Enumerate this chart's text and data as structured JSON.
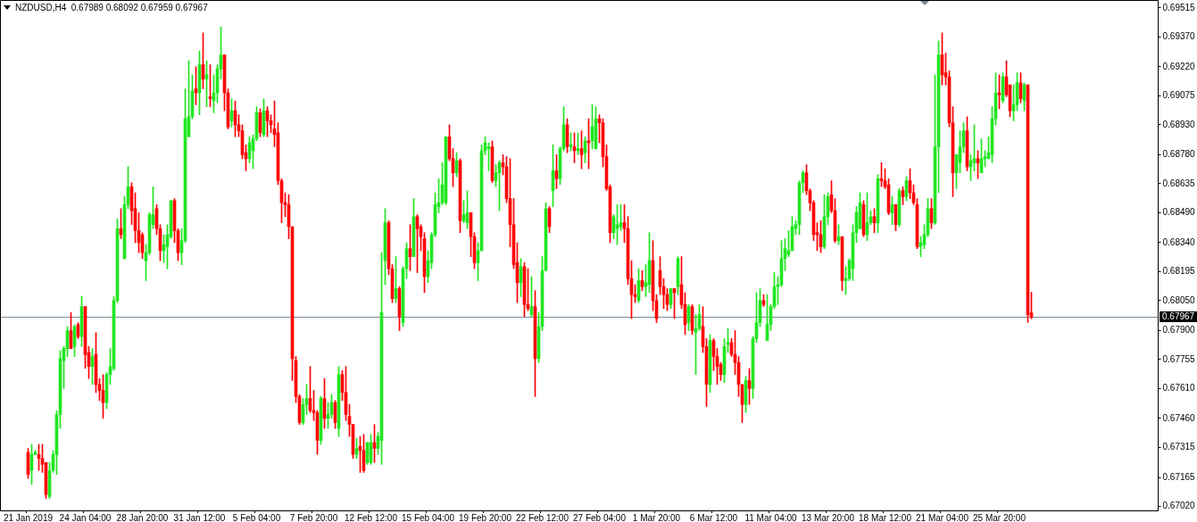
{
  "chart_data": {
    "type": "candlestick",
    "title": "NZDUSD,H4  0.67989 0.68092 0.67959 0.67967",
    "categories": [
      "21 Jan 2019",
      null,
      null,
      null,
      null,
      null,
      null,
      null,
      null,
      null,
      null,
      null,
      null,
      null,
      null,
      null,
      "24 Jan 04:00",
      null,
      null,
      null,
      null,
      null,
      null,
      null,
      null,
      null,
      null,
      null,
      null,
      null,
      null,
      null,
      "28 Jan 20:00",
      null,
      null,
      null,
      null,
      null,
      null,
      null,
      null,
      null,
      null,
      null,
      null,
      null,
      null,
      null,
      "31 Jan 12:00",
      null,
      null,
      null,
      null,
      null,
      null,
      null,
      null,
      null,
      null,
      null,
      null,
      null,
      null,
      null,
      "5 Feb 04:00",
      null,
      null,
      null,
      null,
      null,
      null,
      null,
      null,
      null,
      null,
      null,
      null,
      null,
      null,
      null,
      "7 Feb 20:00",
      null,
      null,
      null,
      null,
      null,
      null,
      null,
      null,
      null,
      null,
      null,
      null,
      null,
      null,
      null,
      "12 Feb 12:00",
      null,
      null,
      null,
      null,
      null,
      null,
      null,
      null,
      null,
      null,
      null,
      null,
      null,
      null,
      null,
      "15 Feb 04:00",
      null,
      null,
      null,
      null,
      null,
      null,
      null,
      null,
      null,
      null,
      null,
      null,
      null,
      null,
      null,
      "19 Feb 20:00",
      null,
      null,
      null,
      null,
      null,
      null,
      null,
      null,
      null,
      null,
      null,
      null,
      null,
      null,
      null,
      "22 Feb 12:00",
      null,
      null,
      null,
      null,
      null,
      null,
      null,
      null,
      null,
      null,
      null,
      null,
      null,
      null,
      null,
      "27 Feb 04:00",
      null,
      null,
      null,
      null,
      null,
      null,
      null,
      null,
      null,
      null,
      null,
      null,
      null,
      null,
      null,
      "1 Mar 20:00",
      null,
      null,
      null,
      null,
      null,
      null,
      null,
      null,
      null,
      null,
      null,
      null,
      null,
      null,
      null,
      "6 Mar 12:00",
      null,
      null,
      null,
      null,
      null,
      null,
      null,
      null,
      null,
      null,
      null,
      null,
      null,
      null,
      null,
      "11 Mar 04:00",
      null,
      null,
      null,
      null,
      null,
      null,
      null,
      null,
      null,
      null,
      null,
      null,
      null,
      null,
      null,
      "13 Mar 20:00",
      null,
      null,
      null,
      null,
      null,
      null,
      null,
      null,
      null,
      null,
      null,
      null,
      null,
      null,
      null,
      "18 Mar 12:00",
      null,
      null,
      null,
      null,
      null,
      null,
      null,
      null,
      null,
      null,
      null,
      null,
      null,
      null,
      null,
      "21 Mar 04:00",
      null,
      null,
      null,
      null,
      null,
      null,
      null,
      null,
      null,
      null,
      null,
      null,
      null,
      null,
      null,
      "25 Mar 20:00",
      null,
      null,
      null,
      null,
      null,
      null,
      null,
      null,
      null,
      null,
      null,
      null,
      null,
      null,
      null,
      null,
      null,
      null,
      null,
      null,
      null,
      null,
      null,
      null,
      null,
      null,
      null,
      null,
      null,
      null,
      null,
      null,
      null,
      null,
      null,
      null,
      null,
      null,
      null,
      null,
      null,
      null,
      null,
      null
    ],
    "ohlc": [
      [
        0.6729,
        0.6731,
        0.6716,
        0.6718
      ],
      [
        0.672,
        0.6733,
        0.6713,
        0.6728
      ],
      [
        0.6728,
        0.673,
        0.6728,
        0.6729
      ],
      [
        0.6728,
        0.6733,
        0.672,
        0.6726
      ],
      [
        0.6726,
        0.6733,
        0.6719,
        0.6723
      ],
      [
        0.6724,
        0.6724,
        0.6706,
        0.6708
      ],
      [
        0.6707,
        0.6724,
        0.6706,
        0.672
      ],
      [
        0.672,
        0.673,
        0.6719,
        0.6728
      ],
      [
        0.6728,
        0.675,
        0.6718,
        0.6748
      ],
      [
        0.6748,
        0.678,
        0.6741,
        0.6776
      ],
      [
        0.6775,
        0.6782,
        0.6761,
        0.6781
      ],
      [
        0.6781,
        0.6792,
        0.6777,
        0.679
      ],
      [
        0.679,
        0.6799,
        0.6781,
        0.6781
      ],
      [
        0.6782,
        0.6793,
        0.6777,
        0.6792
      ],
      [
        0.6793,
        0.6794,
        0.6786,
        0.6787
      ],
      [
        0.6787,
        0.6807,
        0.6782,
        0.6802
      ],
      [
        0.6802,
        0.6802,
        0.6771,
        0.6778
      ],
      [
        0.6779,
        0.6782,
        0.6766,
        0.6772
      ],
      [
        0.6772,
        0.6781,
        0.6763,
        0.6777
      ],
      [
        0.6778,
        0.6789,
        0.6759,
        0.6763
      ],
      [
        0.6763,
        0.6766,
        0.6755,
        0.676
      ],
      [
        0.676,
        0.6768,
        0.6746,
        0.6754
      ],
      [
        0.6754,
        0.6769,
        0.6751,
        0.6768
      ],
      [
        0.6768,
        0.6781,
        0.6763,
        0.6772
      ],
      [
        0.6771,
        0.6807,
        0.677,
        0.6805
      ],
      [
        0.6805,
        0.6846,
        0.6804,
        0.6841
      ],
      [
        0.6841,
        0.6851,
        0.6836,
        0.6838
      ],
      [
        0.6826,
        0.6857,
        0.6826,
        0.6853
      ],
      [
        0.6853,
        0.6872,
        0.6851,
        0.6862
      ],
      [
        0.6862,
        0.6864,
        0.6843,
        0.685
      ],
      [
        0.6851,
        0.6859,
        0.6834,
        0.684
      ],
      [
        0.684,
        0.6849,
        0.6829,
        0.6834
      ],
      [
        0.6838,
        0.6839,
        0.6826,
        0.6829
      ],
      [
        0.6825,
        0.6833,
        0.6815,
        0.6829
      ],
      [
        0.6829,
        0.6849,
        0.6828,
        0.6848
      ],
      [
        0.6843,
        0.6862,
        0.6841,
        0.6848
      ],
      [
        0.6851,
        0.6853,
        0.6838,
        0.6841
      ],
      [
        0.6841,
        0.6843,
        0.6825,
        0.683
      ],
      [
        0.683,
        0.6838,
        0.6824,
        0.6833
      ],
      [
        0.6832,
        0.6843,
        0.6821,
        0.6838
      ],
      [
        0.6837,
        0.6855,
        0.6836,
        0.6855
      ],
      [
        0.6855,
        0.6856,
        0.6834,
        0.684
      ],
      [
        0.684,
        0.6841,
        0.6825,
        0.6829
      ],
      [
        0.6829,
        0.6841,
        0.6823,
        0.6835
      ],
      [
        0.6835,
        0.6911,
        0.6834,
        0.6896
      ],
      [
        0.6887,
        0.6925,
        0.6887,
        0.6897
      ],
      [
        0.6897,
        0.6918,
        0.6896,
        0.691
      ],
      [
        0.6911,
        0.6922,
        0.6903,
        0.6909
      ],
      [
        0.6909,
        0.693,
        0.6898,
        0.6923
      ],
      [
        0.6923,
        0.6939,
        0.6911,
        0.6916
      ],
      [
        0.6916,
        0.6925,
        0.6902,
        0.6918
      ],
      [
        0.6907,
        0.6923,
        0.6902,
        0.6906
      ],
      [
        0.6905,
        0.6918,
        0.6899,
        0.6909
      ],
      [
        0.6909,
        0.6923,
        0.6904,
        0.6921
      ],
      [
        0.6921,
        0.6942,
        0.6916,
        0.6928
      ],
      [
        0.6928,
        0.6928,
        0.69,
        0.6909
      ],
      [
        0.6909,
        0.6911,
        0.6891,
        0.6892
      ],
      [
        0.6895,
        0.6906,
        0.6892,
        0.69
      ],
      [
        0.69,
        0.6905,
        0.6887,
        0.6893
      ],
      [
        0.6893,
        0.6898,
        0.6887,
        0.689
      ],
      [
        0.689,
        0.6893,
        0.6876,
        0.6878
      ],
      [
        0.6879,
        0.6883,
        0.687,
        0.6876
      ],
      [
        0.6876,
        0.6887,
        0.6874,
        0.6884
      ],
      [
        0.688,
        0.6888,
        0.6871,
        0.6886
      ],
      [
        0.6886,
        0.6902,
        0.6885,
        0.6899
      ],
      [
        0.6899,
        0.6901,
        0.6887,
        0.6889
      ],
      [
        0.6888,
        0.6906,
        0.6887,
        0.69
      ],
      [
        0.69,
        0.6902,
        0.6887,
        0.6895
      ],
      [
        0.6895,
        0.6898,
        0.6889,
        0.6893
      ],
      [
        0.6891,
        0.6905,
        0.6882,
        0.6888
      ],
      [
        0.6889,
        0.6894,
        0.6863,
        0.6865
      ],
      [
        0.6865,
        0.6866,
        0.6844,
        0.6854
      ],
      [
        0.6854,
        0.6859,
        0.6847,
        0.6853
      ],
      [
        0.6853,
        0.6858,
        0.6836,
        0.6842
      ],
      [
        0.6842,
        0.6842,
        0.6765,
        0.6776
      ],
      [
        0.6775,
        0.6777,
        0.6754,
        0.6757
      ],
      [
        0.6757,
        0.6758,
        0.6743,
        0.6744
      ],
      [
        0.6744,
        0.6756,
        0.6743,
        0.6753
      ],
      [
        0.6753,
        0.6763,
        0.6748,
        0.6756
      ],
      [
        0.6756,
        0.6772,
        0.6749,
        0.675
      ],
      [
        0.675,
        0.676,
        0.6745,
        0.6749
      ],
      [
        0.6749,
        0.675,
        0.6728,
        0.6735
      ],
      [
        0.6735,
        0.6757,
        0.6733,
        0.6756
      ],
      [
        0.6756,
        0.6766,
        0.6741,
        0.6746
      ],
      [
        0.6746,
        0.6754,
        0.6741,
        0.6748
      ],
      [
        0.6748,
        0.6758,
        0.6746,
        0.6754
      ],
      [
        0.6754,
        0.6755,
        0.6741,
        0.6744
      ],
      [
        0.6741,
        0.6772,
        0.6737,
        0.6768
      ],
      [
        0.6768,
        0.677,
        0.6755,
        0.6759
      ],
      [
        0.6759,
        0.6772,
        0.6745,
        0.6748
      ],
      [
        0.6747,
        0.6753,
        0.6737,
        0.6743
      ],
      [
        0.6743,
        0.6743,
        0.6726,
        0.6728
      ],
      [
        0.6728,
        0.6736,
        0.6726,
        0.6731
      ],
      [
        0.6732,
        0.6737,
        0.6719,
        0.673
      ],
      [
        0.673,
        0.6738,
        0.6719,
        0.672
      ],
      [
        0.6724,
        0.6734,
        0.6723,
        0.6734
      ],
      [
        0.6724,
        0.6738,
        0.6723,
        0.6734
      ],
      [
        0.6734,
        0.6743,
        0.6724,
        0.6731
      ],
      [
        0.6731,
        0.6739,
        0.6728,
        0.6737
      ],
      [
        0.6735,
        0.6829,
        0.6723,
        0.6799
      ],
      [
        0.6825,
        0.6851,
        0.6813,
        0.6844
      ],
      [
        0.6844,
        0.6845,
        0.6818,
        0.6821
      ],
      [
        0.6821,
        0.6823,
        0.6804,
        0.6806
      ],
      [
        0.6806,
        0.6827,
        0.6804,
        0.6811
      ],
      [
        0.6811,
        0.6812,
        0.679,
        0.6797
      ],
      [
        0.6794,
        0.6822,
        0.6792,
        0.6821
      ],
      [
        0.6821,
        0.6834,
        0.6816,
        0.6831
      ],
      [
        0.6831,
        0.6843,
        0.682,
        0.6827
      ],
      [
        0.6827,
        0.6856,
        0.6827,
        0.6847
      ],
      [
        0.6847,
        0.6848,
        0.6819,
        0.6841
      ],
      [
        0.6842,
        0.6843,
        0.683,
        0.6837
      ],
      [
        0.6836,
        0.6839,
        0.6809,
        0.6817
      ],
      [
        0.6817,
        0.683,
        0.6814,
        0.6825
      ],
      [
        0.6824,
        0.6839,
        0.6821,
        0.6838
      ],
      [
        0.6838,
        0.6859,
        0.6837,
        0.6853
      ],
      [
        0.6852,
        0.6866,
        0.6849,
        0.6854
      ],
      [
        0.6854,
        0.6874,
        0.6853,
        0.6863
      ],
      [
        0.6854,
        0.6887,
        0.6853,
        0.6887
      ],
      [
        0.6887,
        0.6893,
        0.6875,
        0.6876
      ],
      [
        0.6876,
        0.6881,
        0.6862,
        0.6869
      ],
      [
        0.6869,
        0.6879,
        0.6867,
        0.6875
      ],
      [
        0.6875,
        0.6876,
        0.6839,
        0.6845
      ],
      [
        0.6845,
        0.6855,
        0.6844,
        0.6848
      ],
      [
        0.6844,
        0.686,
        0.6841,
        0.6849
      ],
      [
        0.6849,
        0.6849,
        0.6827,
        0.6837
      ],
      [
        0.6837,
        0.6839,
        0.6821,
        0.6824
      ],
      [
        0.6824,
        0.6834,
        0.6815,
        0.683
      ],
      [
        0.683,
        0.6883,
        0.683,
        0.688
      ],
      [
        0.688,
        0.6887,
        0.6878,
        0.6884
      ],
      [
        0.6881,
        0.6884,
        0.687,
        0.6882
      ],
      [
        0.6882,
        0.6885,
        0.6864,
        0.6865
      ],
      [
        0.6865,
        0.6873,
        0.6862,
        0.6869
      ],
      [
        0.6869,
        0.6875,
        0.685,
        0.6874
      ],
      [
        0.6874,
        0.6878,
        0.6868,
        0.6872
      ],
      [
        0.6872,
        0.6877,
        0.6854,
        0.6856
      ],
      [
        0.6856,
        0.6876,
        0.6832,
        0.6843
      ],
      [
        0.6843,
        0.6856,
        0.6821,
        0.6823
      ],
      [
        0.6824,
        0.6834,
        0.6804,
        0.6814
      ],
      [
        0.6814,
        0.6826,
        0.6807,
        0.6822
      ],
      [
        0.6822,
        0.6824,
        0.6797,
        0.6803
      ],
      [
        0.6803,
        0.6821,
        0.68,
        0.6801
      ],
      [
        0.6798,
        0.6817,
        0.6797,
        0.6802
      ],
      [
        0.6802,
        0.681,
        0.6757,
        0.6776
      ],
      [
        0.6776,
        0.6799,
        0.6774,
        0.6792
      ],
      [
        0.6792,
        0.6827,
        0.679,
        0.682
      ],
      [
        0.682,
        0.6854,
        0.682,
        0.6851
      ],
      [
        0.6851,
        0.6852,
        0.6839,
        0.6842
      ],
      [
        0.686,
        0.6883,
        0.6852,
        0.687
      ],
      [
        0.687,
        0.6878,
        0.6861,
        0.6866
      ],
      [
        0.6866,
        0.6882,
        0.6863,
        0.6881
      ],
      [
        0.6881,
        0.6902,
        0.688,
        0.6893
      ],
      [
        0.6893,
        0.6896,
        0.6879,
        0.6882
      ],
      [
        0.6882,
        0.6889,
        0.688,
        0.6883
      ],
      [
        0.6882,
        0.6889,
        0.6874,
        0.688
      ],
      [
        0.688,
        0.6889,
        0.6878,
        0.6881
      ],
      [
        0.6881,
        0.689,
        0.6871,
        0.6878
      ],
      [
        0.6879,
        0.6887,
        0.6874,
        0.6885
      ],
      [
        0.6885,
        0.6896,
        0.6871,
        0.6884
      ],
      [
        0.6885,
        0.6903,
        0.6881,
        0.6892
      ],
      [
        0.6881,
        0.6902,
        0.6881,
        0.6896
      ],
      [
        0.6896,
        0.6898,
        0.6884,
        0.6894
      ],
      [
        0.6894,
        0.6896,
        0.6872,
        0.6877
      ],
      [
        0.6877,
        0.6883,
        0.686,
        0.6861
      ],
      [
        0.6862,
        0.6863,
        0.6834,
        0.6839
      ],
      [
        0.6839,
        0.6848,
        0.6836,
        0.6847
      ],
      [
        0.6841,
        0.6853,
        0.6833,
        0.6843
      ],
      [
        0.6842,
        0.6853,
        0.684,
        0.6844
      ],
      [
        0.6844,
        0.6853,
        0.6834,
        0.6841
      ],
      [
        0.6841,
        0.6847,
        0.6813,
        0.6816
      ],
      [
        0.6816,
        0.6825,
        0.6796,
        0.6808
      ],
      [
        0.6808,
        0.6813,
        0.6804,
        0.6807
      ],
      [
        0.6805,
        0.6821,
        0.6804,
        0.6815
      ],
      [
        0.6815,
        0.682,
        0.681,
        0.6812
      ],
      [
        0.6812,
        0.6823,
        0.6807,
        0.6814
      ],
      [
        0.6813,
        0.6839,
        0.6809,
        0.6825
      ],
      [
        0.6825,
        0.6835,
        0.68,
        0.6805
      ],
      [
        0.6805,
        0.6808,
        0.6794,
        0.6796
      ],
      [
        0.682,
        0.6827,
        0.6808,
        0.6812
      ],
      [
        0.6812,
        0.6816,
        0.6801,
        0.6808
      ],
      [
        0.6808,
        0.6811,
        0.68,
        0.6803
      ],
      [
        0.6803,
        0.6811,
        0.6801,
        0.6811
      ],
      [
        0.6811,
        0.6811,
        0.6796,
        0.6809
      ],
      [
        0.6812,
        0.6827,
        0.6808,
        0.6826
      ],
      [
        0.6813,
        0.6827,
        0.6801,
        0.6803
      ],
      [
        0.6803,
        0.6809,
        0.6788,
        0.6793
      ],
      [
        0.6794,
        0.6803,
        0.679,
        0.6802
      ],
      [
        0.6802,
        0.6803,
        0.6788,
        0.679
      ],
      [
        0.6789,
        0.6798,
        0.6768,
        0.6791
      ],
      [
        0.6791,
        0.6803,
        0.679,
        0.6798
      ],
      [
        0.6792,
        0.6802,
        0.6779,
        0.6782
      ],
      [
        0.6782,
        0.6786,
        0.6752,
        0.6763
      ],
      [
        0.6763,
        0.6788,
        0.6759,
        0.6785
      ],
      [
        0.6785,
        0.6786,
        0.677,
        0.6777
      ],
      [
        0.6777,
        0.6781,
        0.6763,
        0.6772
      ],
      [
        0.6773,
        0.6774,
        0.6765,
        0.6768
      ],
      [
        0.6768,
        0.6786,
        0.6764,
        0.6782
      ],
      [
        0.6783,
        0.6791,
        0.6779,
        0.6784
      ],
      [
        0.6784,
        0.6786,
        0.6777,
        0.6778
      ],
      [
        0.6778,
        0.679,
        0.6768,
        0.6774
      ],
      [
        0.6774,
        0.6777,
        0.6757,
        0.6763
      ],
      [
        0.6763,
        0.6763,
        0.6744,
        0.6753
      ],
      [
        0.6753,
        0.6767,
        0.6749,
        0.6765
      ],
      [
        0.6765,
        0.6771,
        0.6753,
        0.6761
      ],
      [
        0.6761,
        0.6787,
        0.6756,
        0.6786
      ],
      [
        0.6786,
        0.6809,
        0.6784,
        0.6794
      ],
      [
        0.6794,
        0.6811,
        0.6792,
        0.6805
      ],
      [
        0.6805,
        0.6808,
        0.6802,
        0.6803
      ],
      [
        0.6785,
        0.6808,
        0.6785,
        0.6793
      ],
      [
        0.6793,
        0.6803,
        0.679,
        0.6802
      ],
      [
        0.6802,
        0.6819,
        0.6801,
        0.6812
      ],
      [
        0.6812,
        0.6817,
        0.6803,
        0.6813
      ],
      [
        0.6813,
        0.6835,
        0.6812,
        0.6826
      ],
      [
        0.6826,
        0.6836,
        0.682,
        0.6831
      ],
      [
        0.6828,
        0.684,
        0.6827,
        0.683
      ],
      [
        0.683,
        0.6847,
        0.683,
        0.6842
      ],
      [
        0.6841,
        0.6845,
        0.6838,
        0.6843
      ],
      [
        0.6843,
        0.6865,
        0.6838,
        0.6864
      ],
      [
        0.6864,
        0.687,
        0.6859,
        0.6869
      ],
      [
        0.6869,
        0.6873,
        0.6858,
        0.686
      ],
      [
        0.686,
        0.6861,
        0.685,
        0.6854
      ],
      [
        0.6854,
        0.6855,
        0.6835,
        0.6838
      ],
      [
        0.6839,
        0.6844,
        0.683,
        0.6838
      ],
      [
        0.6838,
        0.6845,
        0.6829,
        0.6832
      ],
      [
        0.6832,
        0.6858,
        0.6831,
        0.6847
      ],
      [
        0.6847,
        0.6859,
        0.6843,
        0.6857
      ],
      [
        0.6858,
        0.6865,
        0.6849,
        0.685
      ],
      [
        0.685,
        0.6856,
        0.6834,
        0.6835
      ],
      [
        0.6835,
        0.6843,
        0.6833,
        0.6837
      ],
      [
        0.6837,
        0.6837,
        0.681,
        0.6815
      ],
      [
        0.6815,
        0.6822,
        0.6808,
        0.6816
      ],
      [
        0.6816,
        0.6826,
        0.6815,
        0.6825
      ],
      [
        0.6821,
        0.6843,
        0.6815,
        0.6839
      ],
      [
        0.6839,
        0.6852,
        0.6834,
        0.6849
      ],
      [
        0.6841,
        0.6859,
        0.6841,
        0.6854
      ],
      [
        0.6853,
        0.6855,
        0.6837,
        0.6838
      ],
      [
        0.6838,
        0.6859,
        0.6835,
        0.6844
      ],
      [
        0.6844,
        0.685,
        0.6843,
        0.6847
      ],
      [
        0.6847,
        0.6851,
        0.6839,
        0.6844
      ],
      [
        0.6844,
        0.6868,
        0.6839,
        0.6866
      ],
      [
        0.6866,
        0.6874,
        0.6862,
        0.6865
      ],
      [
        0.6865,
        0.6871,
        0.6861,
        0.6862
      ],
      [
        0.6863,
        0.6866,
        0.6848,
        0.6849
      ],
      [
        0.6849,
        0.6857,
        0.6843,
        0.6853
      ],
      [
        0.6853,
        0.6853,
        0.684,
        0.6843
      ],
      [
        0.6843,
        0.6861,
        0.6842,
        0.686
      ],
      [
        0.686,
        0.6862,
        0.6853,
        0.6857
      ],
      [
        0.6857,
        0.6867,
        0.6855,
        0.6865
      ],
      [
        0.6865,
        0.6871,
        0.6856,
        0.6859
      ],
      [
        0.6859,
        0.6863,
        0.6853,
        0.6854
      ],
      [
        0.6853,
        0.6856,
        0.6831,
        0.6832
      ],
      [
        0.6832,
        0.6837,
        0.6827,
        0.6834
      ],
      [
        0.6833,
        0.6843,
        0.6831,
        0.6838
      ],
      [
        0.6838,
        0.6856,
        0.6837,
        0.6851
      ],
      [
        0.6851,
        0.6856,
        0.6841,
        0.6844
      ],
      [
        0.6844,
        0.6918,
        0.6843,
        0.6882
      ],
      [
        0.6882,
        0.6935,
        0.6859,
        0.6928
      ],
      [
        0.6928,
        0.6939,
        0.6913,
        0.6918
      ],
      [
        0.6919,
        0.6929,
        0.6913,
        0.6917
      ],
      [
        0.6917,
        0.692,
        0.6892,
        0.6894
      ],
      [
        0.6894,
        0.6902,
        0.6857,
        0.6869
      ],
      [
        0.6869,
        0.6878,
        0.6861,
        0.6878
      ],
      [
        0.6874,
        0.689,
        0.6869,
        0.6882
      ],
      [
        0.6882,
        0.6894,
        0.6879,
        0.689
      ],
      [
        0.689,
        0.6897,
        0.687,
        0.6872
      ],
      [
        0.6872,
        0.6878,
        0.6865,
        0.6875
      ],
      [
        0.6874,
        0.6893,
        0.687,
        0.6876
      ],
      [
        0.6876,
        0.688,
        0.6866,
        0.6874
      ],
      [
        0.6869,
        0.6886,
        0.6869,
        0.6876
      ],
      [
        0.6876,
        0.688,
        0.6872,
        0.6877
      ],
      [
        0.6876,
        0.6887,
        0.6876,
        0.6879
      ],
      [
        0.6878,
        0.6902,
        0.6874,
        0.6896
      ],
      [
        0.6896,
        0.6919,
        0.6893,
        0.6909
      ],
      [
        0.6909,
        0.6918,
        0.6901,
        0.6908
      ],
      [
        0.6905,
        0.6919,
        0.6904,
        0.6917
      ],
      [
        0.6917,
        0.6925,
        0.6907,
        0.6908
      ],
      [
        0.6913,
        0.6913,
        0.6897,
        0.69
      ],
      [
        0.69,
        0.6913,
        0.6895,
        0.6903
      ],
      [
        0.6903,
        0.6919,
        0.69,
        0.6914
      ],
      [
        0.6914,
        0.6919,
        0.6904,
        0.6906
      ],
      [
        0.6905,
        0.6914,
        0.69,
        0.6913
      ],
      [
        0.6913,
        0.6913,
        0.6794,
        0.6798
      ],
      [
        0.67989,
        0.68092,
        0.67959,
        0.67967
      ],
      null,
      null,
      null,
      null,
      null,
      null,
      null,
      null,
      null,
      null,
      null,
      null,
      null,
      null,
      null,
      null,
      null,
      null,
      null,
      null,
      null,
      null,
      null,
      null,
      null,
      null,
      null,
      null,
      null,
      null,
      null,
      null,
      null,
      null,
      null
    ],
    "colors": [
      "#ff0000",
      "#21e621",
      "#21e621",
      "#ff0000",
      "#ff0000",
      "#ff0000",
      "#21e621",
      "#21e621",
      "#21e621",
      "#21e621",
      "#21e621",
      "#21e621",
      "#ff0000",
      "#21e621",
      "#ff0000",
      "#21e621",
      "#ff0000",
      "#ff0000",
      "#21e621",
      "#ff0000",
      "#ff0000",
      "#ff0000",
      "#21e621",
      "#21e621",
      "#21e621",
      "#21e621",
      "#ff0000",
      "#21e621",
      "#21e621",
      "#ff0000",
      "#ff0000",
      "#ff0000",
      "#ff0000",
      "#21e621",
      "#21e621",
      "#21e621",
      "#ff0000",
      "#ff0000",
      "#21e621",
      "#21e621",
      "#21e621",
      "#ff0000",
      "#ff0000",
      "#21e621",
      "#21e621",
      "#21e621",
      "#21e621",
      "#ff0000",
      "#21e621",
      "#ff0000",
      "#21e621",
      "#ff0000",
      "#21e621",
      "#21e621",
      "#21e621",
      "#ff0000",
      "#ff0000",
      "#21e621",
      "#ff0000",
      "#ff0000",
      "#ff0000",
      "#ff0000",
      "#21e621",
      "#21e621",
      "#21e621",
      "#ff0000",
      "#21e621",
      "#ff0000",
      "#ff0000",
      "#ff0000",
      "#ff0000",
      "#ff0000",
      "#ff0000",
      "#ff0000",
      "#ff0000",
      "#ff0000",
      "#ff0000",
      "#21e621",
      "#21e621",
      "#ff0000",
      "#ff0000",
      "#ff0000",
      "#21e621",
      "#ff0000",
      "#21e621",
      "#21e621",
      "#ff0000",
      "#21e621",
      "#ff0000",
      "#ff0000",
      "#ff0000",
      "#ff0000",
      "#21e621",
      "#ff0000",
      "#ff0000",
      "#21e621",
      "#21e621",
      "#ff0000",
      "#21e621",
      "#21e621",
      "#21e621",
      "#ff0000",
      "#ff0000",
      "#21e621",
      "#ff0000",
      "#21e621",
      "#21e621",
      "#ff0000",
      "#21e621",
      "#ff0000",
      "#ff0000",
      "#ff0000",
      "#21e621",
      "#21e621",
      "#21e621",
      "#21e621",
      "#21e621",
      "#21e621",
      "#ff0000",
      "#ff0000",
      "#21e621",
      "#ff0000",
      "#21e621",
      "#21e621",
      "#ff0000",
      "#ff0000",
      "#21e621",
      "#21e621",
      "#21e621",
      "#21e621",
      "#ff0000",
      "#21e621",
      "#21e621",
      "#ff0000",
      "#ff0000",
      "#ff0000",
      "#ff0000",
      "#ff0000",
      "#21e621",
      "#ff0000",
      "#ff0000",
      "#21e621",
      "#ff0000",
      "#21e621",
      "#21e621",
      "#21e621",
      "#ff0000",
      "#21e621",
      "#ff0000",
      "#21e621",
      "#21e621",
      "#ff0000",
      "#21e621",
      "#ff0000",
      "#21e621",
      "#ff0000",
      "#21e621",
      "#ff0000",
      "#21e621",
      "#21e621",
      "#ff0000",
      "#ff0000",
      "#ff0000",
      "#ff0000",
      "#21e621",
      "#21e621",
      "#21e621",
      "#ff0000",
      "#ff0000",
      "#ff0000",
      "#ff0000",
      "#21e621",
      "#ff0000",
      "#21e621",
      "#21e621",
      "#ff0000",
      "#ff0000",
      "#ff0000",
      "#ff0000",
      "#ff0000",
      "#21e621",
      "#ff0000",
      "#21e621",
      "#ff0000",
      "#ff0000",
      "#21e621",
      "#ff0000",
      "#21e621",
      "#21e621",
      "#ff0000",
      "#ff0000",
      "#21e621",
      "#ff0000",
      "#ff0000",
      "#ff0000",
      "#21e621",
      "#21e621",
      "#ff0000",
      "#ff0000",
      "#ff0000",
      "#ff0000",
      "#21e621",
      "#ff0000",
      "#21e621",
      "#21e621",
      "#21e621",
      "#ff0000",
      "#21e621",
      "#21e621",
      "#21e621",
      "#21e621",
      "#21e621",
      "#21e621",
      "#21e621",
      "#21e621",
      "#21e621",
      "#21e621",
      "#21e621",
      "#ff0000",
      "#ff0000",
      "#ff0000",
      "#ff0000",
      "#ff0000",
      "#21e621",
      "#21e621",
      "#ff0000",
      "#ff0000",
      "#21e621",
      "#ff0000",
      "#21e621",
      "#21e621",
      "#21e621",
      "#21e621",
      "#21e621",
      "#ff0000",
      "#21e621",
      "#21e621",
      "#ff0000",
      "#21e621",
      "#ff0000",
      "#ff0000",
      "#ff0000",
      "#21e621",
      "#ff0000",
      "#21e621",
      "#ff0000",
      "#21e621",
      "#ff0000",
      "#ff0000",
      "#ff0000",
      "#21e621",
      "#21e621",
      "#21e621",
      "#ff0000",
      "#21e621",
      "#21e621",
      "#ff0000",
      "#ff0000",
      "#ff0000",
      "#ff0000",
      "#21e621",
      "#21e621",
      "#21e621",
      "#ff0000",
      "#21e621",
      "#21e621",
      "#ff0000",
      "#21e621",
      "#21e621",
      "#21e621",
      "#21e621",
      "#21e621",
      "#ff0000",
      "#21e621",
      "#ff0000",
      "#ff0000",
      "#21e621",
      "#21e621",
      "#ff0000",
      "#21e621",
      "#ff0000",
      "#ff0000",
      null,
      null,
      null,
      null,
      null,
      null,
      null,
      null,
      null,
      null,
      null,
      null,
      null,
      null,
      null,
      null,
      null,
      null,
      null,
      null,
      null,
      null,
      null,
      null,
      null,
      null,
      null,
      null,
      null,
      null,
      null,
      null,
      null,
      null,
      null
    ],
    "ylim": [
      0.67,
      0.6955
    ],
    "yticks": [
      0.69515,
      {
        "value": 0.6937,
        "label": "0.69370"
      },
      {
        "value": 0.6922,
        "label": "0.69220"
      },
      0.69075,
      {
        "value": 0.6893,
        "label": "0.68930"
      },
      {
        "value": 0.6878,
        "label": "0.68780"
      },
      0.68635,
      {
        "value": 0.6849,
        "label": "0.68490"
      },
      {
        "value": 0.6834,
        "label": "0.68340"
      },
      0.68195,
      {
        "value": 0.6805,
        "label": "0.68050"
      },
      {
        "value": 0.679,
        "label": "0.67900"
      },
      0.67755,
      {
        "value": 0.6761,
        "label": "0.67610"
      },
      {
        "value": 0.6746,
        "label": "0.67460"
      },
      0.67315,
      0.67165,
      {
        "value": 0.6702,
        "label": "0.67020"
      }
    ],
    "ref_lines": [
      {
        "axis": "y",
        "value": 0.67967,
        "label": "0.67967",
        "color": "#778899"
      }
    ]
  }
}
